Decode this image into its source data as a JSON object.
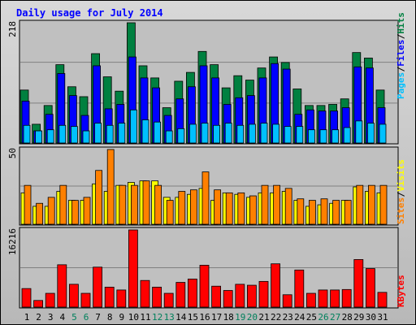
{
  "title": "Daily usage for July 2014",
  "colors": {
    "background": "#C0C0C0",
    "title": "#0000FF",
    "hits": "#008040",
    "files": "#0000FF",
    "pages": "#00C0FF",
    "visits": "#FFFF00",
    "sites": "#FF8000",
    "kbytes": "#FF0000",
    "weekend_label": "#00805C",
    "weekday_label": "#000000",
    "grid": "#808080"
  },
  "chart_data": [
    {
      "type": "bar",
      "name": "hits-files-pages",
      "ymax_label": "218",
      "ylim": [
        0,
        218
      ],
      "legend": [
        "Pages",
        "Files",
        "Hits"
      ],
      "categories": [
        "1",
        "2",
        "3",
        "4",
        "5",
        "6",
        "7",
        "8",
        "9",
        "10",
        "11",
        "12",
        "13",
        "14",
        "15",
        "16",
        "17",
        "18",
        "19",
        "20",
        "21",
        "22",
        "23",
        "24",
        "25",
        "26",
        "27",
        "28",
        "29",
        "30",
        "31"
      ],
      "weekend_days": [
        "5",
        "6",
        "12",
        "13",
        "19",
        "20",
        "26",
        "27"
      ],
      "series": [
        {
          "name": "Hits",
          "values": [
            96,
            34,
            68,
            142,
            102,
            84,
            162,
            120,
            94,
            218,
            140,
            118,
            64,
            112,
            128,
            166,
            142,
            100,
            122,
            114,
            136,
            156,
            146,
            98,
            68,
            68,
            70,
            80,
            164,
            154,
            96
          ]
        },
        {
          "name": "Files",
          "values": [
            76,
            22,
            52,
            126,
            86,
            50,
            140,
            62,
            70,
            156,
            118,
            100,
            50,
            80,
            102,
            140,
            118,
            70,
            82,
            86,
            118,
            144,
            134,
            52,
            60,
            58,
            58,
            64,
            138,
            136,
            64
          ]
        },
        {
          "name": "Pages",
          "values": [
            32,
            22,
            24,
            32,
            30,
            22,
            36,
            32,
            36,
            60,
            42,
            38,
            22,
            26,
            34,
            36,
            32,
            36,
            32,
            34,
            36,
            34,
            30,
            30,
            24,
            24,
            24,
            28,
            40,
            36,
            34
          ]
        }
      ]
    },
    {
      "type": "bar",
      "name": "visits-sites",
      "ymax_label": "50",
      "ylim": [
        0,
        50
      ],
      "legend": [
        "Sites",
        "Visits"
      ],
      "categories": [
        "1",
        "2",
        "3",
        "4",
        "5",
        "6",
        "7",
        "8",
        "9",
        "10",
        "11",
        "12",
        "13",
        "14",
        "15",
        "16",
        "17",
        "18",
        "19",
        "20",
        "21",
        "22",
        "23",
        "24",
        "25",
        "26",
        "27",
        "28",
        "29",
        "30",
        "31"
      ],
      "series": [
        {
          "name": "Visits",
          "values": [
            21,
            12,
            12,
            22,
            16,
            16,
            27,
            22,
            26,
            28,
            29,
            29,
            18,
            18,
            20,
            24,
            16,
            21,
            20,
            18,
            21,
            21,
            22,
            16,
            12,
            13,
            14,
            16,
            25,
            22,
            21
          ]
        },
        {
          "name": "Sites",
          "values": [
            26,
            14,
            18,
            26,
            16,
            18,
            36,
            50,
            26,
            26,
            29,
            26,
            16,
            22,
            23,
            35,
            23,
            21,
            21,
            19,
            26,
            26,
            24,
            17,
            16,
            17,
            16,
            16,
            26,
            26,
            26
          ]
        }
      ]
    },
    {
      "type": "bar",
      "name": "kbytes",
      "ymax_label": "16216",
      "ylim": [
        0,
        16216
      ],
      "legend": [
        "KBytes"
      ],
      "categories": [
        "1",
        "2",
        "3",
        "4",
        "5",
        "6",
        "7",
        "8",
        "9",
        "10",
        "11",
        "12",
        "13",
        "14",
        "15",
        "16",
        "17",
        "18",
        "19",
        "20",
        "21",
        "22",
        "23",
        "24",
        "25",
        "26",
        "27",
        "28",
        "29",
        "30",
        "31"
      ],
      "series": [
        {
          "name": "KBytes",
          "values": [
            3900,
            1400,
            2900,
            8900,
            4800,
            2900,
            8400,
            4200,
            3600,
            16216,
            5600,
            4200,
            2900,
            5200,
            5900,
            8800,
            4400,
            3500,
            4800,
            4600,
            5400,
            9100,
            2600,
            7800,
            2900,
            3600,
            3600,
            3700,
            10000,
            8100,
            3100
          ]
        }
      ]
    }
  ]
}
